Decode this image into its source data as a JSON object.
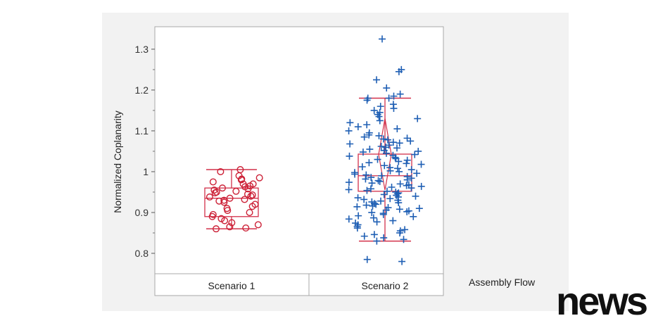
{
  "chart_data": {
    "type": "scatter",
    "subtype": "box-plot-with-jittered-points",
    "title": "",
    "ylabel": "Normalized Coplanarity",
    "xlabel": "Assembly Flow",
    "ylim": [
      0.75,
      1.355
    ],
    "yticks": [
      "0.8",
      "0.9",
      "1",
      "1.1",
      "1.2",
      "1.3"
    ],
    "categories": [
      "Scenario 1",
      "Scenario 2"
    ],
    "grid": false,
    "colors": {
      "box": "#d2314a",
      "scenario1": "#cc2036",
      "scenario2": "#1f5fb4"
    },
    "series": [
      {
        "category": "Scenario 1",
        "marker": "circle",
        "box": {
          "whisker_low": 0.86,
          "q1": 0.89,
          "median": 0.935,
          "q3": 0.96,
          "whisker_high": 1.005
        },
        "values": [
          1.005,
          1.0,
          0.99,
          0.985,
          0.982,
          0.98,
          0.975,
          0.97,
          0.97,
          0.965,
          0.963,
          0.96,
          0.958,
          0.955,
          0.952,
          0.95,
          0.948,
          0.945,
          0.943,
          0.94,
          0.938,
          0.935,
          0.932,
          0.93,
          0.928,
          0.925,
          0.92,
          0.915,
          0.91,
          0.905,
          0.9,
          0.895,
          0.89,
          0.885,
          0.88,
          0.875,
          0.87,
          0.865,
          0.862,
          0.86
        ]
      },
      {
        "category": "Scenario 2",
        "marker": "plus",
        "box": {
          "whisker_low": 0.83,
          "q1": 0.952,
          "median": 0.99,
          "q3": 1.043,
          "whisker_high": 1.18
        },
        "mean_ci": [
          0.955,
          1.13
        ],
        "values": [
          1.325,
          1.25,
          1.245,
          1.225,
          1.205,
          1.19,
          1.185,
          1.18,
          1.18,
          1.175,
          1.165,
          1.16,
          1.155,
          1.15,
          1.145,
          1.14,
          1.135,
          1.13,
          1.125,
          1.12,
          1.115,
          1.11,
          1.105,
          1.1,
          1.095,
          1.09,
          1.088,
          1.085,
          1.082,
          1.08,
          1.078,
          1.075,
          1.072,
          1.07,
          1.068,
          1.065,
          1.062,
          1.06,
          1.058,
          1.055,
          1.052,
          1.05,
          1.048,
          1.045,
          1.042,
          1.04,
          1.038,
          1.035,
          1.032,
          1.03,
          1.028,
          1.025,
          1.022,
          1.02,
          1.018,
          1.015,
          1.012,
          1.01,
          1.008,
          1.005,
          1.002,
          1.0,
          0.998,
          0.996,
          0.994,
          0.992,
          0.99,
          0.988,
          0.986,
          0.984,
          0.982,
          0.98,
          0.978,
          0.976,
          0.974,
          0.972,
          0.97,
          0.968,
          0.966,
          0.964,
          0.962,
          0.96,
          0.958,
          0.956,
          0.954,
          0.952,
          0.95,
          0.948,
          0.946,
          0.944,
          0.942,
          0.94,
          0.938,
          0.936,
          0.934,
          0.932,
          0.93,
          0.928,
          0.926,
          0.924,
          0.922,
          0.92,
          0.918,
          0.916,
          0.914,
          0.912,
          0.91,
          0.908,
          0.906,
          0.904,
          0.902,
          0.9,
          0.898,
          0.895,
          0.892,
          0.89,
          0.887,
          0.884,
          0.88,
          0.877,
          0.874,
          0.87,
          0.866,
          0.862,
          0.858,
          0.855,
          0.85,
          0.846,
          0.842,
          0.838,
          0.834,
          0.83,
          0.785,
          0.78
        ]
      }
    ]
  },
  "watermark": "news"
}
